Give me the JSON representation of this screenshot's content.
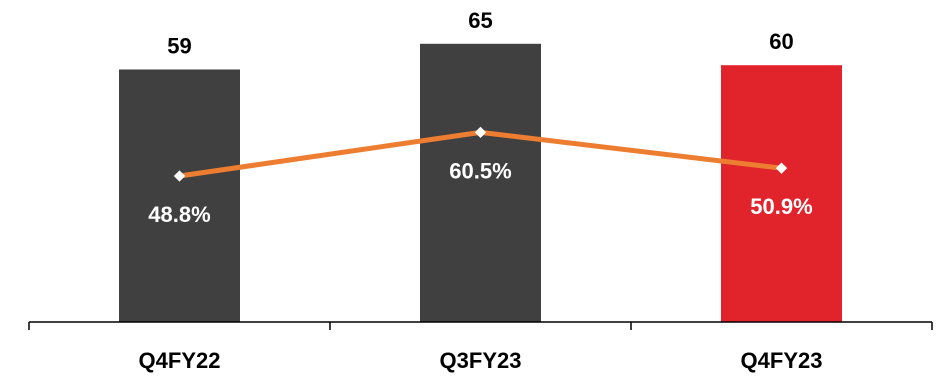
{
  "chart_data": {
    "type": "bar",
    "categories": [
      "Q4FY22",
      "Q3FY23",
      "Q4FY23"
    ],
    "series": [
      {
        "values": [
          59,
          65,
          60
        ],
        "value_labels": [
          "59",
          "65",
          "60"
        ],
        "colors": [
          "#404040",
          "#404040",
          "#e1232b"
        ]
      },
      {
        "type": "line",
        "values": [
          48.8,
          60.5,
          50.9
        ],
        "value_labels": [
          "48.8%",
          "60.5%",
          "50.9%"
        ],
        "color": "#ed7d31",
        "marker_color": "#ffffff"
      }
    ],
    "title": "",
    "xlabel": "",
    "ylabel": "",
    "grid": false,
    "legend": "none"
  }
}
